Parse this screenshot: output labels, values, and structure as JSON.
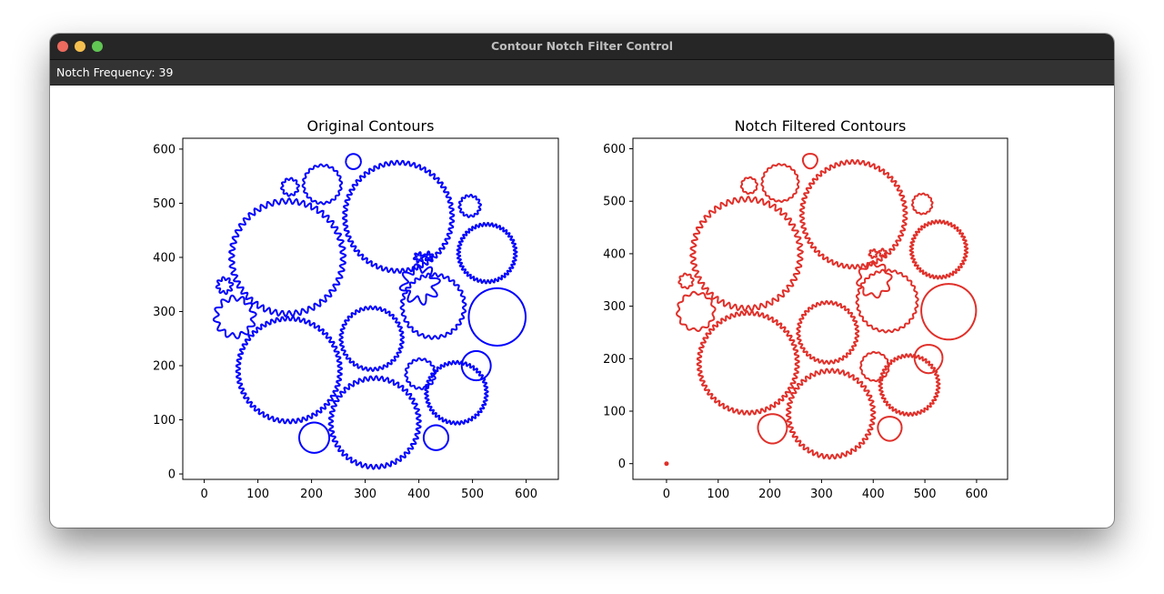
{
  "window": {
    "title": "Contour Notch Filter Control"
  },
  "controls": {
    "notch_frequency_label": "Notch Frequency: 39"
  },
  "chart_data": [
    {
      "type": "line",
      "title": "Original Contours",
      "color": "#0000ff",
      "xlabel": "",
      "ylabel": "",
      "xlim": [
        -40,
        660
      ],
      "ylim": [
        -10,
        620
      ],
      "xticks": [
        0,
        100,
        200,
        300,
        400,
        500,
        600
      ],
      "yticks": [
        0,
        100,
        200,
        300,
        400,
        500,
        600
      ],
      "grid": false,
      "notch": false,
      "gears": [
        {
          "cx": 362,
          "cy": 475,
          "r": 100,
          "teeth": 60,
          "amp": 4
        },
        {
          "cx": 155,
          "cy": 400,
          "r": 104,
          "teeth": 50,
          "amp": 5
        },
        {
          "cx": 158,
          "cy": 192,
          "r": 95,
          "teeth": 60,
          "amp": 4
        },
        {
          "cx": 318,
          "cy": 95,
          "r": 82,
          "teeth": 50,
          "amp": 4
        },
        {
          "cx": 312,
          "cy": 250,
          "r": 57,
          "teeth": 40,
          "amp": 3
        },
        {
          "cx": 470,
          "cy": 150,
          "r": 56,
          "teeth": 46,
          "amp": 3
        },
        {
          "cx": 527,
          "cy": 408,
          "r": 53,
          "teeth": 46,
          "amp": 3
        },
        {
          "cx": 546,
          "cy": 290,
          "r": 53,
          "teeth": 0,
          "amp": 0
        },
        {
          "cx": 427,
          "cy": 310,
          "r": 58,
          "teeth": 30,
          "amp": 3
        },
        {
          "cx": 220,
          "cy": 535,
          "r": 35,
          "teeth": 20,
          "amp": 2
        },
        {
          "cx": 57,
          "cy": 290,
          "r": 35,
          "teeth": 12,
          "amp": 5
        },
        {
          "cx": 402,
          "cy": 350,
          "r": 30,
          "teeth": 8,
          "amp": 8
        },
        {
          "cx": 507,
          "cy": 200,
          "r": 27,
          "teeth": 0,
          "amp": 0
        },
        {
          "cx": 205,
          "cy": 67,
          "r": 28,
          "teeth": 0,
          "amp": 0
        },
        {
          "cx": 432,
          "cy": 67,
          "r": 23,
          "teeth": 0,
          "amp": 0
        },
        {
          "cx": 403,
          "cy": 185,
          "r": 27,
          "teeth": 16,
          "amp": 2
        },
        {
          "cx": 495,
          "cy": 495,
          "r": 19,
          "teeth": 14,
          "amp": 2
        },
        {
          "cx": 278,
          "cy": 577,
          "r": 14,
          "teeth": 0,
          "amp": 0
        },
        {
          "cx": 160,
          "cy": 530,
          "r": 15,
          "teeth": 10,
          "amp": 2
        },
        {
          "cx": 38,
          "cy": 348,
          "r": 13,
          "teeth": 8,
          "amp": 3
        },
        {
          "cx": 400,
          "cy": 400,
          "r": 7,
          "teeth": 6,
          "amp": 3
        },
        {
          "cx": 418,
          "cy": 402,
          "r": 6,
          "teeth": 5,
          "amp": 3
        }
      ]
    },
    {
      "type": "line",
      "title": "Notch Filtered Contours",
      "color": "#e0302a",
      "xlabel": "",
      "ylabel": "",
      "xlim": [
        -65,
        660
      ],
      "ylim": [
        -30,
        620
      ],
      "xticks": [
        0,
        100,
        200,
        300,
        400,
        500,
        600
      ],
      "yticks": [
        0,
        100,
        200,
        300,
        400,
        500,
        600
      ],
      "grid": false,
      "notch": true,
      "stray_point": {
        "x": 0,
        "y": 0
      }
    }
  ]
}
